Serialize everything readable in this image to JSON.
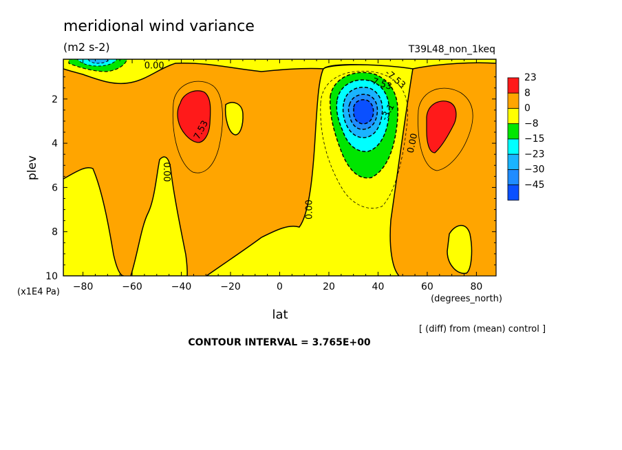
{
  "chart_data": {
    "type": "heatmap",
    "title": "meridional wind variance",
    "units": "(m2 s-2)",
    "experiment": "T39L48_non_1keq",
    "xlabel": "lat",
    "xunits": "(degrees_north)",
    "ylabel": "plev",
    "yunits": "(x1E4 Pa)",
    "xlim": [
      -88,
      88
    ],
    "ylim": [
      10,
      0.2
    ],
    "x_ticks": [
      -80,
      -60,
      -40,
      -20,
      0,
      20,
      40,
      60,
      80
    ],
    "y_ticks": [
      2,
      4,
      6,
      8,
      10
    ],
    "colorbar": {
      "labels": [
        "23",
        "8",
        "0",
        "-8",
        "-15",
        "-23",
        "-30",
        "-45"
      ],
      "colors": [
        "#ff1a1a",
        "#ffa500",
        "#ffff00",
        "#00e600",
        "#00ffff",
        "#1ab4ff",
        "#1f8cff",
        "#0a50ff"
      ]
    },
    "contour_labels": [
      "0.00",
      "0.00",
      "0.00",
      "0.00",
      "7.53",
      "-7.53",
      "-7.53",
      "-3.1"
    ],
    "diff_note": "[ (diff) from (mean) control ]",
    "contour_interval": "CONTOUR INTERVAL = 3.765E+00",
    "features": [
      {
        "lat": -35,
        "plev": 2.5,
        "value": 23
      },
      {
        "lat": 65,
        "plev": 3.1,
        "value": 23
      },
      {
        "lat": 33,
        "plev": 2.4,
        "value": -45
      }
    ]
  }
}
